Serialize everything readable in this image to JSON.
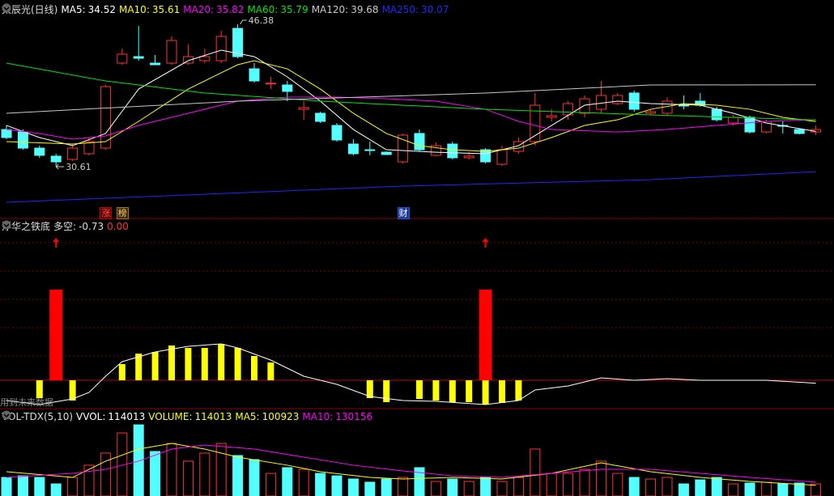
{
  "chart_data": [
    {
      "type": "candlestick",
      "title": "太辰光(日线)",
      "ylim": [
        24.88,
        49.07
      ],
      "up_color": "#ff3232",
      "down_color": "#54ffff",
      "open": [
        34.73,
        34.46,
        32.67,
        31.78,
        31.42,
        32.05,
        32.67,
        42.08,
        42.8,
        42.08,
        42.08,
        42.08,
        42.35,
        42.35,
        45.93,
        41.45,
        39.84,
        39.66,
        36.97,
        36.53,
        35.18,
        33.12,
        32.49,
        32.22,
        31.15,
        34.29,
        31.87,
        33.12,
        31.6,
        32.49,
        30.88,
        32.31,
        33.39,
        36.08,
        36.35,
        36.53,
        36.97,
        37.6,
        38.77,
        36.53,
        36.53,
        37.42,
        37.87,
        36.97,
        35.45,
        36.08,
        34.46,
        35.18,
        34.73,
        34.46
      ],
      "high": [
        35.18,
        34.73,
        32.94,
        32.05,
        33.12,
        33.84,
        39.66,
        43.69,
        46.2,
        42.98,
        45.04,
        44.14,
        43.69,
        45.67,
        46.38,
        42.08,
        40.56,
        40.11,
        37.87,
        36.7,
        35.45,
        33.66,
        33.39,
        32.3,
        34.29,
        34.73,
        33.3,
        33.39,
        32.22,
        32.67,
        32.94,
        33.84,
        38.77,
        36.97,
        37.87,
        38.5,
        40.11,
        38.77,
        39.04,
        36.97,
        38.32,
        38.5,
        38.77,
        37.24,
        36.35,
        36.26,
        35.81,
        35.63,
        34.8,
        35.18
      ],
      "low": [
        33.66,
        32.49,
        31.6,
        30.61,
        31.24,
        31.87,
        32.49,
        41.9,
        42.35,
        41.9,
        41.9,
        41.9,
        42.08,
        42.08,
        42.62,
        39.93,
        39.21,
        37.87,
        35.81,
        35.45,
        33.39,
        31.87,
        31.87,
        31.9,
        30.97,
        32.31,
        31.78,
        31.42,
        31.42,
        30.97,
        30.7,
        32.05,
        32.94,
        35.63,
        35.81,
        36.08,
        36.53,
        37.42,
        36.7,
        36.35,
        36.35,
        36.97,
        37.24,
        35.63,
        35.18,
        34.29,
        34.29,
        34.29,
        34.2,
        34.11
      ],
      "close": [
        33.84,
        32.67,
        31.87,
        31.15,
        32.67,
        33.39,
        39.48,
        43.07,
        42.62,
        41.9,
        44.59,
        42.8,
        42.8,
        45.04,
        42.8,
        40.11,
        39.86,
        38.95,
        37.15,
        35.63,
        33.57,
        32.05,
        32.47,
        31.96,
        34.11,
        32.49,
        32.94,
        31.6,
        31.78,
        31.15,
        32.49,
        33.39,
        37.42,
        36.26,
        37.6,
        38.14,
        38.5,
        38.5,
        36.97,
        36.7,
        37.87,
        37.4,
        37.42,
        35.81,
        36.08,
        34.46,
        35.63,
        35.16,
        34.29,
        34.73
      ],
      "series": [
        {
          "name": "MA5:",
          "color": "#ffffff",
          "x": [
            0,
            2,
            4,
            6,
            8,
            11,
            13,
            15,
            17,
            19,
            21,
            23,
            26,
            29,
            31,
            33,
            35,
            37,
            39,
            42,
            44,
            46,
            49
          ],
          "values": [
            35.18,
            33.84,
            32.94,
            34.29,
            39.21,
            42.35,
            43.51,
            42.8,
            40.56,
            37.87,
            34.73,
            32.49,
            32.22,
            32.05,
            32.94,
            35.18,
            37.42,
            37.87,
            37.6,
            37.42,
            36.53,
            35.45,
            34.52
          ]
        },
        {
          "name": "MA10:",
          "color": "#ffff00",
          "x": [
            0,
            4,
            6,
            8,
            11,
            13,
            14,
            15,
            17,
            19,
            21,
            23,
            25,
            27,
            29,
            31,
            33,
            35,
            37,
            39,
            41,
            43,
            45,
            47,
            49
          ],
          "values": [
            33.39,
            33.12,
            33.39,
            35.63,
            39.21,
            41.01,
            41.9,
            42.35,
            41.45,
            39.21,
            36.53,
            34.29,
            32.94,
            32.49,
            32.31,
            32.67,
            33.84,
            35.18,
            35.81,
            36.97,
            37.6,
            37.42,
            36.97,
            36.08,
            35.61
          ]
        },
        {
          "name": "MA20:",
          "color": "#ff00ff",
          "x": [
            0,
            2,
            4,
            6,
            8,
            11,
            14,
            17,
            20,
            23,
            26,
            29,
            31,
            33,
            37,
            40,
            43,
            46,
            49
          ],
          "values": [
            34.73,
            34.29,
            33.66,
            34.02,
            35.18,
            36.53,
            37.87,
            38.32,
            38.32,
            38.14,
            37.87,
            36.97,
            35.63,
            34.73,
            34.46,
            34.73,
            35.18,
            35.63,
            35.82
          ]
        },
        {
          "name": "MA60:",
          "color": "#00e600",
          "x": [
            0,
            6,
            12,
            19,
            29,
            39,
            49
          ],
          "values": [
            42.08,
            40.11,
            38.77,
            37.87,
            36.97,
            36.35,
            35.79
          ]
        },
        {
          "name": "MA120:",
          "color": "#c8c8c8",
          "x": [
            0,
            14,
            29,
            39,
            49
          ],
          "values": [
            36.53,
            37.87,
            38.77,
            39.66,
            39.68
          ]
        },
        {
          "name": "MA250:",
          "color": "#2424ff",
          "x": [
            0,
            24,
            39,
            49
          ],
          "values": [
            26.67,
            28.46,
            29.18,
            30.07
          ]
        }
      ],
      "annotations": {
        "max": 46.38,
        "min": 30.61
      },
      "markers": [
        {
          "text": "涨",
          "index": 6
        },
        {
          "text": "榜",
          "index": 7
        },
        {
          "text": "财",
          "index": 24
        }
      ]
    },
    {
      "type": "signal",
      "title": "浮华之铁底",
      "label": "多空:",
      "values": [
        -0.73,
        0
      ],
      "value_labels": [
        "-0.73",
        "0.00"
      ],
      "ylim": [
        -7,
        36
      ],
      "bar_color": "#ffff00",
      "signal_color": "#ff0000",
      "line_color": "#ffffff",
      "bars": [
        null,
        null,
        -4.4,
        null,
        -5,
        null,
        null,
        4,
        6.6,
        7,
        8.6,
        8,
        8,
        9,
        8,
        6,
        4.4,
        null,
        null,
        null,
        null,
        null,
        -4.4,
        -5.4,
        null,
        -4.6,
        -5,
        -5.4,
        -5.4,
        -6,
        -5.6,
        -5,
        null,
        null,
        null,
        null,
        null,
        null,
        null,
        null,
        null,
        null,
        null,
        null,
        null,
        null,
        null,
        null,
        null,
        null
      ],
      "signals": [
        null,
        null,
        null,
        22.4,
        null,
        null,
        null,
        null,
        null,
        null,
        null,
        null,
        null,
        null,
        null,
        null,
        null,
        null,
        null,
        null,
        null,
        null,
        null,
        null,
        null,
        null,
        null,
        null,
        null,
        22.4,
        null,
        null,
        null,
        null,
        null,
        null,
        null,
        null,
        null,
        null,
        null,
        null,
        null,
        null,
        null,
        null,
        null,
        null,
        null,
        null
      ],
      "line": {
        "x": [
          0,
          2,
          4,
          5,
          6,
          7,
          9,
          11,
          13,
          14,
          16,
          18,
          20,
          22,
          24,
          26,
          29,
          31,
          32,
          34,
          36,
          38,
          40,
          42,
          44,
          46,
          49
        ],
        "values": [
          -5,
          -6,
          -4.6,
          -3,
          1,
          4.6,
          7,
          8.4,
          9,
          8,
          5,
          1,
          -1,
          -4,
          -5,
          -5.2,
          -6,
          -5,
          -2.4,
          -1.4,
          0.6,
          0,
          0.4,
          0,
          0,
          0,
          -0.73
        ]
      },
      "note": "用到未来数据"
    },
    {
      "type": "volume",
      "title": "VOL-TDX(5,10)",
      "ylim": [
        0,
        800000
      ],
      "values": [
        175000,
        190000,
        175000,
        114000,
        175000,
        290000,
        404000,
        594000,
        670000,
        419000,
        495000,
        328000,
        404000,
        495000,
        381000,
        343000,
        213000,
        267000,
        251000,
        213000,
        190000,
        160000,
        130000,
        160000,
        175000,
        267000,
        137000,
        160000,
        137000,
        175000,
        137000,
        175000,
        442000,
        213000,
        213000,
        251000,
        328000,
        213000,
        175000,
        160000,
        175000,
        114000,
        152000,
        175000,
        114000,
        122000,
        130000,
        114000,
        122000,
        114013
      ],
      "legend": [
        {
          "name": "VVOL:",
          "color": "#ffffff"
        },
        {
          "name": "VOLUME:",
          "color": "#ffff00"
        }
      ],
      "series": [
        {
          "name": "MA5:",
          "color": "#ffff00",
          "x": [
            0,
            4,
            6,
            8,
            10,
            12,
            14,
            17,
            19,
            22,
            24,
            27,
            30,
            33,
            36,
            39,
            42,
            45,
            49
          ],
          "values": [
            229000,
            175000,
            328000,
            442000,
            495000,
            442000,
            366000,
            290000,
            229000,
            175000,
            160000,
            175000,
            160000,
            213000,
            312000,
            229000,
            175000,
            137000,
            100923
          ]
        },
        {
          "name": "MA10:",
          "color": "#ff00ff",
          "x": [
            0,
            4,
            6,
            8,
            10,
            12,
            15,
            18,
            21,
            24,
            27,
            30,
            33,
            36,
            39,
            42,
            45,
            49
          ],
          "values": [
            175000,
            213000,
            251000,
            328000,
            442000,
            480000,
            442000,
            366000,
            290000,
            236000,
            190000,
            175000,
            213000,
            251000,
            251000,
            213000,
            175000,
            130156
          ]
        }
      ]
    }
  ]
}
